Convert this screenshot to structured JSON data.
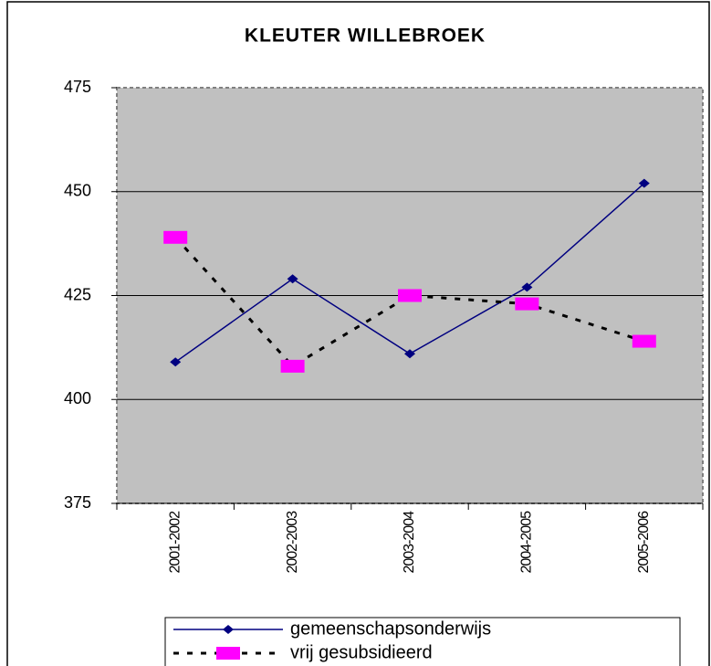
{
  "chart_data": {
    "type": "line",
    "title": "KLEUTER WILLEBROEK",
    "categories": [
      "2001-2002",
      "2002-2003",
      "2003-2004",
      "2004-2005",
      "2005-2006"
    ],
    "series": [
      {
        "name": "gemeenschapsonderwijs",
        "color": "#000080",
        "values": [
          409,
          429,
          411,
          427,
          452
        ]
      },
      {
        "name": "vrij gesubsidieerd",
        "color": "#ff00ff",
        "values": [
          439,
          408,
          425,
          423,
          414
        ]
      }
    ],
    "ylim": [
      375,
      475
    ],
    "yticks": [
      375,
      400,
      425,
      450,
      475
    ],
    "grid": true,
    "legend": "bottom"
  }
}
